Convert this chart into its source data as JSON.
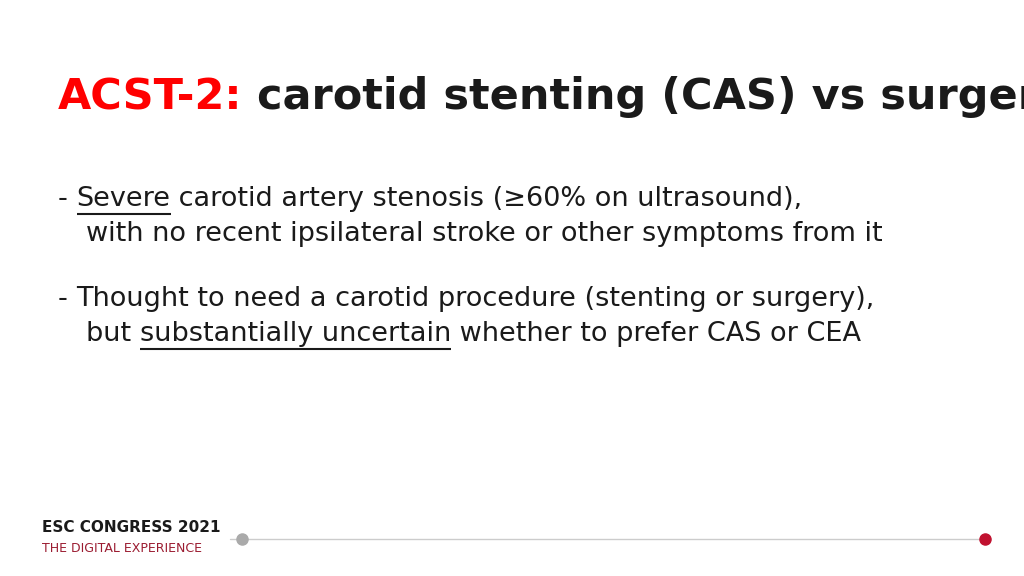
{
  "title_red": "ACST-2:",
  "title_black": " carotid stenting (CAS) vs surgery (CEA)",
  "title_fontsize": 31,
  "title_red_color": "#FF0000",
  "title_black_color": "#1a1a1a",
  "bullet_fontsize": 19.5,
  "text_color": "#1a1a1a",
  "bg_color": "#ffffff",
  "footer_title": "ESC CONGRESS 2021",
  "footer_subtitle": "THE DIGITAL EXPERIENCE",
  "footer_title_color": "#1a1a1a",
  "footer_subtitle_color": "#9b1c31",
  "footer_fontsize_title": 11,
  "footer_fontsize_sub": 9,
  "dot_gray_color": "#aaaaaa",
  "dot_red_color": "#c0112f",
  "line_color": "#cccccc"
}
